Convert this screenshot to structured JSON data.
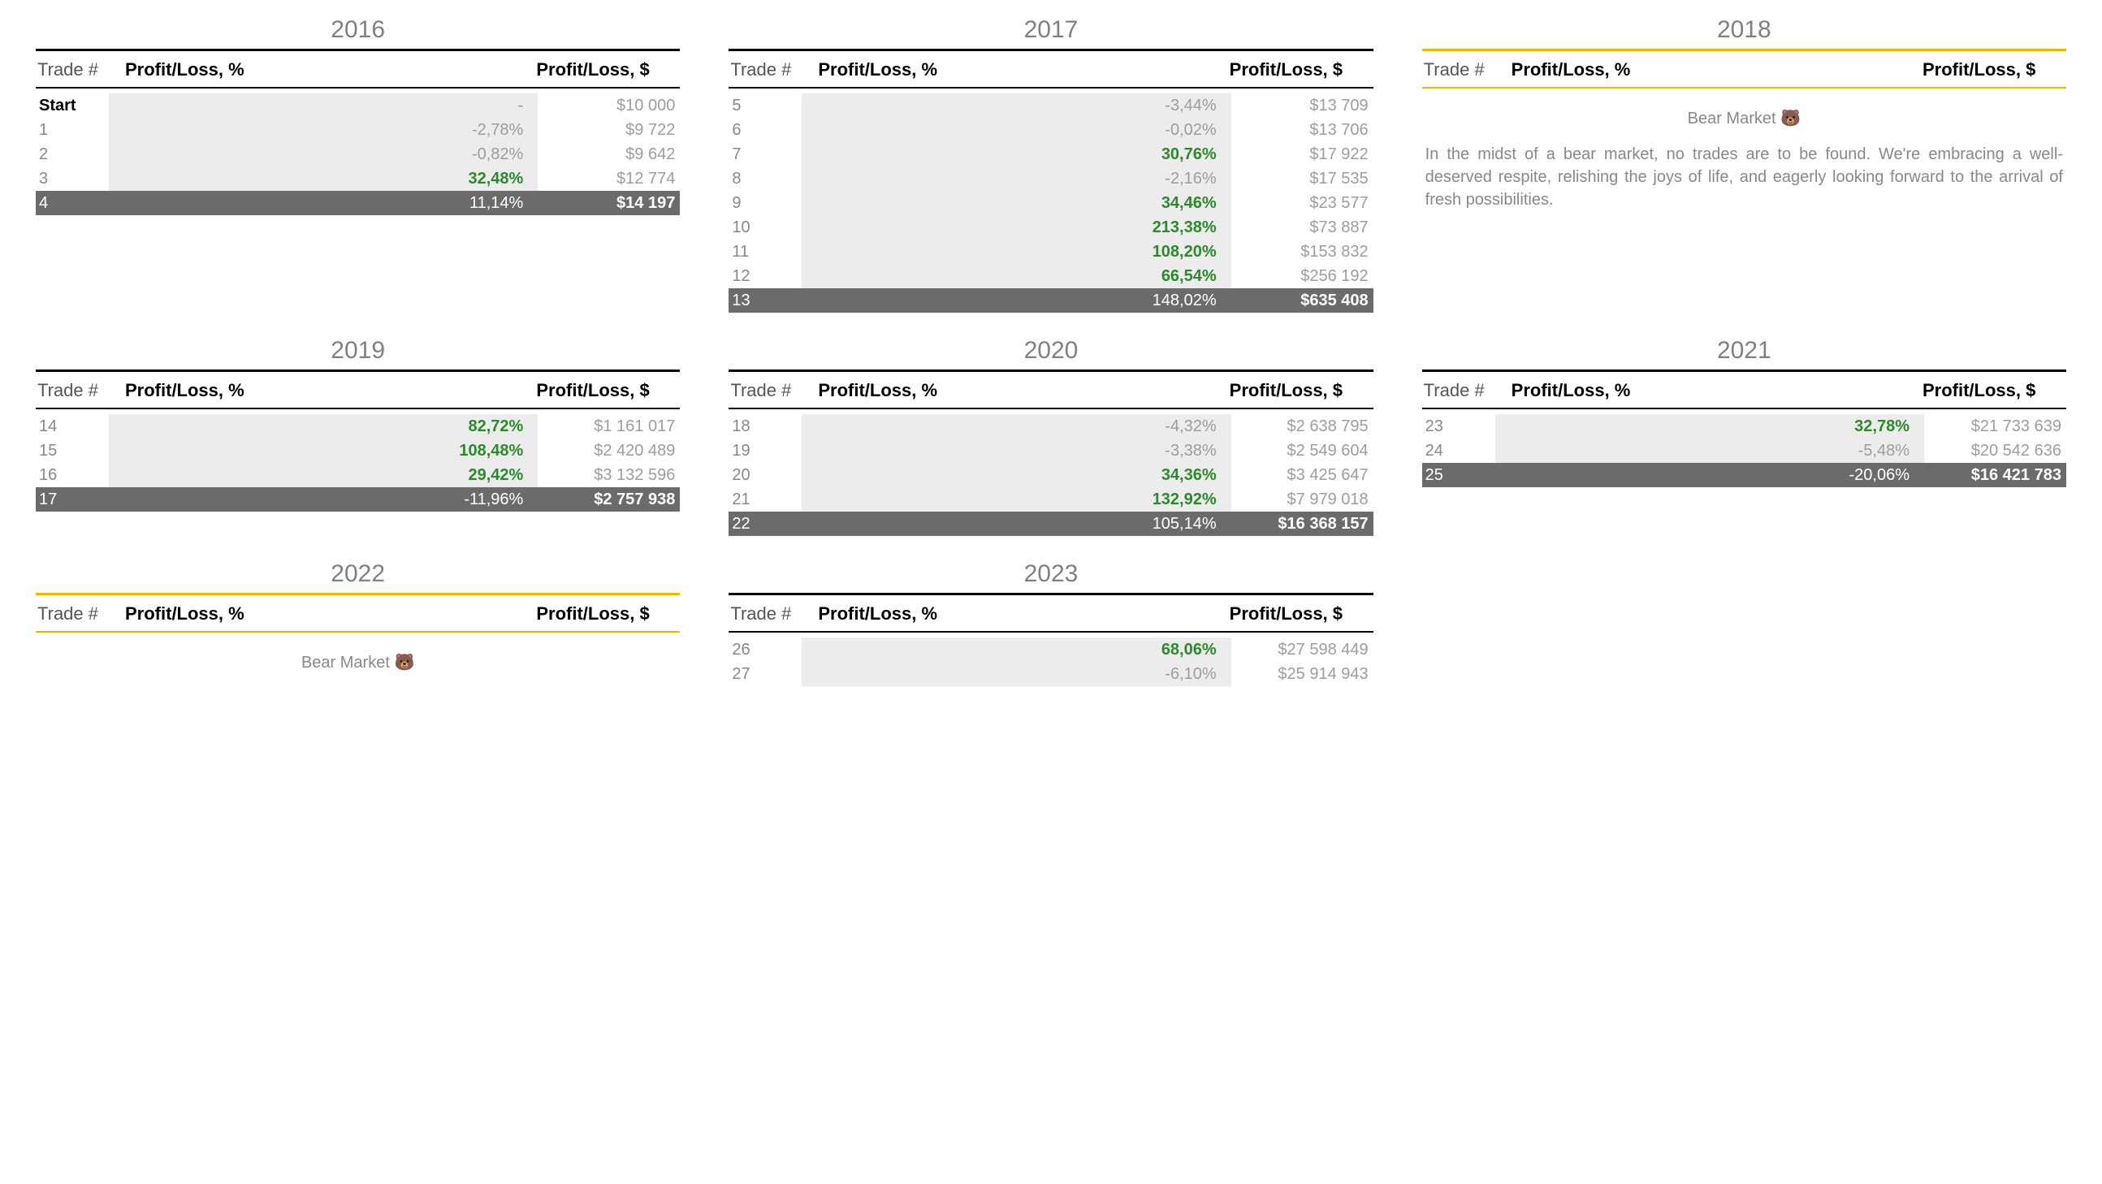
{
  "labels": {
    "trade_h": "Trade #",
    "pct_h": "Profit/Loss, %",
    "dol_h": "Profit/Loss, $",
    "bear_title": "Bear Market 🐻",
    "bear_text": "In the midst of a bear market, no trades are to be found. We're embracing a well-deserved respite, relishing the joys of life, and eagerly looking forward to the arrival of fresh possibilities."
  },
  "style": {
    "color_positive": "#2b8a2b",
    "color_neutral": "#9d9d9d",
    "color_final_bg": "#6b6b6b",
    "color_rule_black": "#000000",
    "color_rule_yellow": "#f2b600",
    "color_pct_bg": "#ececec"
  },
  "panels": [
    {
      "year": "2016",
      "yellow": false,
      "bear": false,
      "rows": [
        {
          "trade": "Start",
          "pct": "-",
          "dol": "$10 000",
          "pos": false,
          "start": true,
          "final": false
        },
        {
          "trade": "1",
          "pct": "-2,78%",
          "dol": "$9 722",
          "pos": false,
          "start": false,
          "final": false
        },
        {
          "trade": "2",
          "pct": "-0,82%",
          "dol": "$9 642",
          "pos": false,
          "start": false,
          "final": false
        },
        {
          "trade": "3",
          "pct": "32,48%",
          "dol": "$12 774",
          "pos": true,
          "start": false,
          "final": false
        },
        {
          "trade": "4",
          "pct": "11,14%",
          "dol": "$14 197",
          "pos": true,
          "start": false,
          "final": true
        }
      ]
    },
    {
      "year": "2017",
      "yellow": false,
      "bear": false,
      "rows": [
        {
          "trade": "5",
          "pct": "-3,44%",
          "dol": "$13 709",
          "pos": false,
          "start": false,
          "final": false
        },
        {
          "trade": "6",
          "pct": "-0,02%",
          "dol": "$13 706",
          "pos": false,
          "start": false,
          "final": false
        },
        {
          "trade": "7",
          "pct": "30,76%",
          "dol": "$17 922",
          "pos": true,
          "start": false,
          "final": false
        },
        {
          "trade": "8",
          "pct": "-2,16%",
          "dol": "$17 535",
          "pos": false,
          "start": false,
          "final": false
        },
        {
          "trade": "9",
          "pct": "34,46%",
          "dol": "$23 577",
          "pos": true,
          "start": false,
          "final": false
        },
        {
          "trade": "10",
          "pct": "213,38%",
          "dol": "$73 887",
          "pos": true,
          "start": false,
          "final": false
        },
        {
          "trade": "11",
          "pct": "108,20%",
          "dol": "$153 832",
          "pos": true,
          "start": false,
          "final": false
        },
        {
          "trade": "12",
          "pct": "66,54%",
          "dol": "$256 192",
          "pos": true,
          "start": false,
          "final": false
        },
        {
          "trade": "13",
          "pct": "148,02%",
          "dol": "$635 408",
          "pos": true,
          "start": false,
          "final": true
        }
      ]
    },
    {
      "year": "2018",
      "yellow": true,
      "bear": true,
      "rows": []
    },
    {
      "year": "2019",
      "yellow": false,
      "bear": false,
      "rows": [
        {
          "trade": "14",
          "pct": "82,72%",
          "dol": "$1 161 017",
          "pos": true,
          "start": false,
          "final": false
        },
        {
          "trade": "15",
          "pct": "108,48%",
          "dol": "$2 420 489",
          "pos": true,
          "start": false,
          "final": false
        },
        {
          "trade": "16",
          "pct": "29,42%",
          "dol": "$3 132 596",
          "pos": true,
          "start": false,
          "final": false
        },
        {
          "trade": "17",
          "pct": "-11,96%",
          "dol": "$2 757 938",
          "pos": false,
          "start": false,
          "final": true
        }
      ]
    },
    {
      "year": "2020",
      "yellow": false,
      "bear": false,
      "rows": [
        {
          "trade": "18",
          "pct": "-4,32%",
          "dol": "$2 638 795",
          "pos": false,
          "start": false,
          "final": false
        },
        {
          "trade": "19",
          "pct": "-3,38%",
          "dol": "$2 549 604",
          "pos": false,
          "start": false,
          "final": false
        },
        {
          "trade": "20",
          "pct": "34,36%",
          "dol": "$3 425 647",
          "pos": true,
          "start": false,
          "final": false
        },
        {
          "trade": "21",
          "pct": "132,92%",
          "dol": "$7 979 018",
          "pos": true,
          "start": false,
          "final": false
        },
        {
          "trade": "22",
          "pct": "105,14%",
          "dol": "$16 368 157",
          "pos": true,
          "start": false,
          "final": true
        }
      ]
    },
    {
      "year": "2021",
      "yellow": false,
      "bear": false,
      "rows": [
        {
          "trade": "23",
          "pct": "32,78%",
          "dol": "$21 733 639",
          "pos": true,
          "start": false,
          "final": false
        },
        {
          "trade": "24",
          "pct": "-5,48%",
          "dol": "$20 542 636",
          "pos": false,
          "start": false,
          "final": false
        },
        {
          "trade": "25",
          "pct": "-20,06%",
          "dol": "$16 421 783",
          "pos": false,
          "start": false,
          "final": true
        }
      ]
    },
    {
      "year": "2022",
      "yellow": true,
      "bear": true,
      "bear_text_show": false,
      "rows": []
    },
    {
      "year": "2023",
      "yellow": false,
      "bear": false,
      "rows": [
        {
          "trade": "26",
          "pct": "68,06%",
          "dol": "$27 598 449",
          "pos": true,
          "start": false,
          "final": false
        },
        {
          "trade": "27",
          "pct": "-6,10%",
          "dol": "$25 914 943",
          "pos": false,
          "start": false,
          "final": false
        }
      ]
    }
  ]
}
